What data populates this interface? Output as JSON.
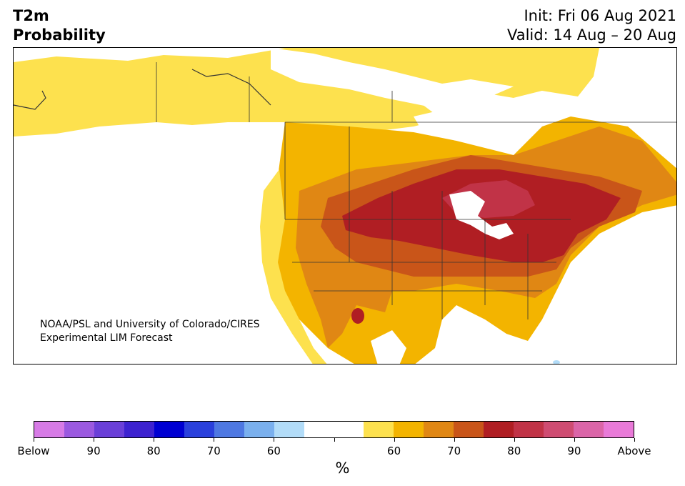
{
  "title": {
    "line1": "T2m",
    "line2": "Probability",
    "init": "Init: Fri 06 Aug 2021",
    "valid": "Valid: 14 Aug – 20 Aug"
  },
  "credit": {
    "line1": "NOAA/PSL and University of Colorado/CIRES",
    "line2": "Experimental LIM Forecast"
  },
  "colorbar": {
    "colors": [
      "#d77be6",
      "#9b59e0",
      "#6a3fd8",
      "#3d22d0",
      "#0000d2",
      "#2a40dc",
      "#4e78e2",
      "#7ab0ee",
      "#b2dcf8",
      "#ffffff",
      "#ffffff",
      "#fde14e",
      "#f3b400",
      "#e08714",
      "#c95519",
      "#b01e23",
      "#c13347",
      "#cf4c72",
      "#db65a8",
      "#e97ad8"
    ],
    "tick_labels": [
      "Below",
      "90",
      "80",
      "70",
      "60",
      "",
      "60",
      "70",
      "80",
      "90",
      "Above"
    ],
    "unit": "%"
  },
  "map": {
    "region": "North America",
    "colors": {
      "p60": "#fde14e",
      "p70": "#f3b400",
      "p75": "#e08714",
      "p80": "#c95519",
      "p85": "#b01e23",
      "p90": "#c13347",
      "ocean": "#ffffff",
      "boundary": "#333333"
    }
  }
}
